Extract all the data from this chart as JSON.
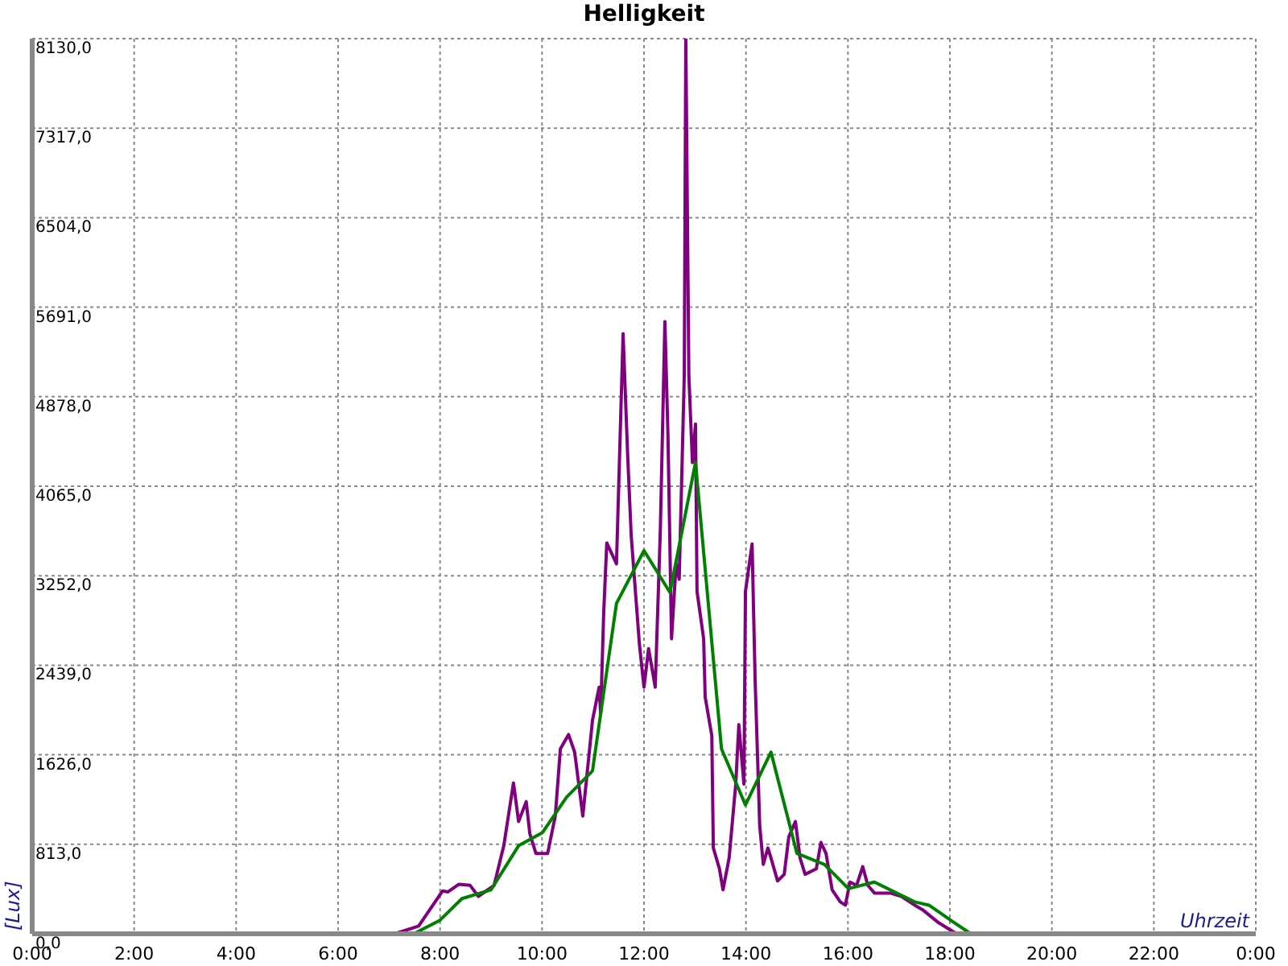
{
  "chart_data": {
    "type": "line",
    "title": "Helligkeit",
    "xlabel": "Uhrzeit",
    "ylabel": "[Lux]",
    "grid": true,
    "marker": "none",
    "line_style": "solid",
    "xlim": [
      0,
      24
    ],
    "xticks": [
      {
        "value": 0,
        "label": "0:00"
      },
      {
        "value": 2,
        "label": "2:00"
      },
      {
        "value": 4,
        "label": "4:00"
      },
      {
        "value": 6,
        "label": "6:00"
      },
      {
        "value": 8,
        "label": "8:00"
      },
      {
        "value": 10,
        "label": "10:00"
      },
      {
        "value": 12,
        "label": "12:00"
      },
      {
        "value": 14,
        "label": "14:00"
      },
      {
        "value": 16,
        "label": "16:00"
      },
      {
        "value": 18,
        "label": "18:00"
      },
      {
        "value": 20,
        "label": "20:00"
      },
      {
        "value": 22,
        "label": "22:00"
      },
      {
        "value": 24,
        "label": "0:00"
      }
    ],
    "ylim": [
      0,
      8130
    ],
    "yticks": [
      {
        "value": 0,
        "label": "0,0"
      },
      {
        "value": 813,
        "label": "813,0"
      },
      {
        "value": 1626,
        "label": "1626,0"
      },
      {
        "value": 2439,
        "label": "2439,0"
      },
      {
        "value": 3252,
        "label": "3252,0"
      },
      {
        "value": 4065,
        "label": "4065,0"
      },
      {
        "value": 4878,
        "label": "4878,0"
      },
      {
        "value": 5691,
        "label": "5691,0"
      },
      {
        "value": 6504,
        "label": "6504,0"
      },
      {
        "value": 7317,
        "label": "7317,0"
      },
      {
        "value": 8130,
        "label": "8130,0"
      }
    ],
    "series": [
      {
        "color": "#800080",
        "x": [
          0,
          7.11,
          7.58,
          8.05,
          8.15,
          8.37,
          8.59,
          8.75,
          9.06,
          9.25,
          9.44,
          9.54,
          9.69,
          9.76,
          9.88,
          10.11,
          10.26,
          10.36,
          10.52,
          10.64,
          10.8,
          10.99,
          11.12,
          11.15,
          11.21,
          11.27,
          11.46,
          11.59,
          11.68,
          11.75,
          11.91,
          12.0,
          12.09,
          12.22,
          12.32,
          12.41,
          12.47,
          12.54,
          12.63,
          12.69,
          12.79,
          12.82,
          12.88,
          12.95,
          13.01,
          13.04,
          13.17,
          13.2,
          13.33,
          13.36,
          13.48,
          13.55,
          13.67,
          13.8,
          13.86,
          13.96,
          13.99,
          14.12,
          14.18,
          14.27,
          14.34,
          14.43,
          14.49,
          14.62,
          14.75,
          14.84,
          14.97,
          15.06,
          15.16,
          15.38,
          15.47,
          15.57,
          15.69,
          15.85,
          15.95,
          16.04,
          16.17,
          16.29,
          16.39,
          16.52,
          16.83,
          17.05,
          17.31,
          17.46,
          17.78,
          18.06,
          18.16,
          24
        ],
        "values": [
          0,
          0,
          70,
          390,
          380,
          450,
          440,
          340,
          440,
          800,
          1370,
          1020,
          1200,
          910,
          730,
          730,
          1070,
          1680,
          1810,
          1650,
          1070,
          1940,
          2240,
          2000,
          2920,
          3550,
          3360,
          5450,
          4340,
          3610,
          2630,
          2240,
          2590,
          2240,
          3660,
          5560,
          4530,
          2680,
          3360,
          3220,
          5070,
          8130,
          5070,
          4280,
          4630,
          3110,
          2680,
          2150,
          1800,
          780,
          590,
          400,
          690,
          1360,
          1900,
          1360,
          3110,
          3540,
          2300,
          980,
          630,
          780,
          690,
          480,
          540,
          880,
          1020,
          690,
          540,
          590,
          830,
          730,
          400,
          290,
          260,
          470,
          440,
          610,
          440,
          370,
          370,
          340,
          260,
          220,
          100,
          20,
          0,
          0
        ]
      },
      {
        "color": "#008000",
        "x": [
          0,
          7.48,
          7.99,
          8.43,
          9.0,
          9.54,
          10.01,
          10.48,
          10.99,
          11.46,
          12.0,
          12.51,
          13.01,
          13.52,
          13.99,
          14.49,
          15.0,
          15.54,
          16.01,
          16.52,
          17.31,
          17.59,
          18.09,
          18.41,
          24
        ],
        "values": [
          0,
          0,
          120,
          320,
          400,
          800,
          920,
          1240,
          1480,
          3000,
          3480,
          3100,
          4280,
          1680,
          1170,
          1650,
          730,
          630,
          410,
          470,
          290,
          260,
          100,
          0,
          0
        ]
      }
    ]
  }
}
